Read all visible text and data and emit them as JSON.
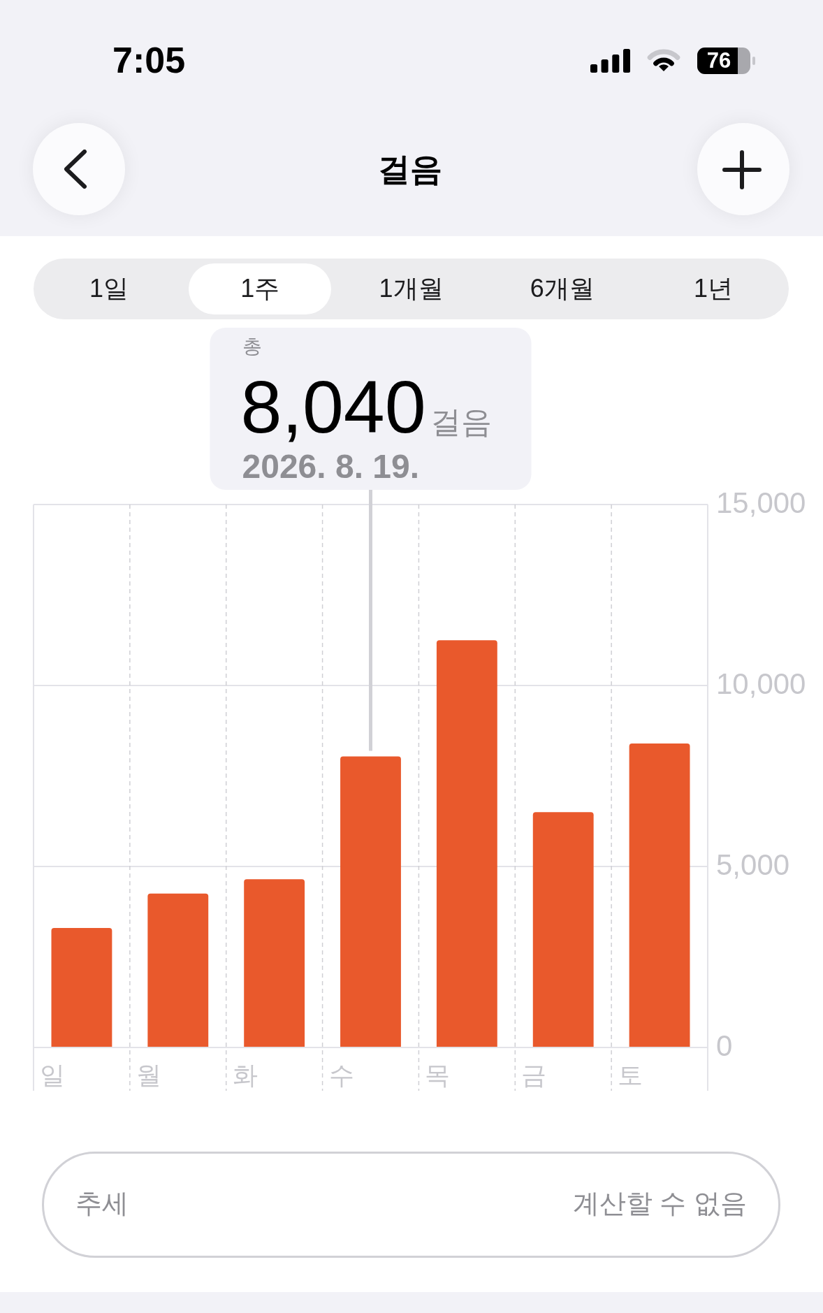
{
  "chart_data": {
    "type": "bar",
    "title": "걸음",
    "categories": [
      "일",
      "월",
      "화",
      "수",
      "목",
      "금",
      "토"
    ],
    "values": [
      3300,
      4250,
      4650,
      8040,
      11250,
      6500,
      8400
    ],
    "color": "#e9592c",
    "value_labels": [
      null,
      null,
      null,
      "8,040",
      null,
      null,
      null
    ],
    "ylim": [
      0,
      15000
    ],
    "yticks": [
      0,
      {
        "value": 5000,
        "label": "5,000"
      },
      {
        "value": 10000,
        "label": "10,000"
      },
      {
        "value": 15000,
        "label": "15,000"
      }
    ],
    "grid": true,
    "annotations": [
      "7:05",
      "76",
      "1일",
      "1주",
      "1개월",
      "6개월",
      "1년",
      "총",
      "걸음",
      "2026. 8. 19.",
      "추세",
      "계산할 수 없음"
    ]
  }
}
